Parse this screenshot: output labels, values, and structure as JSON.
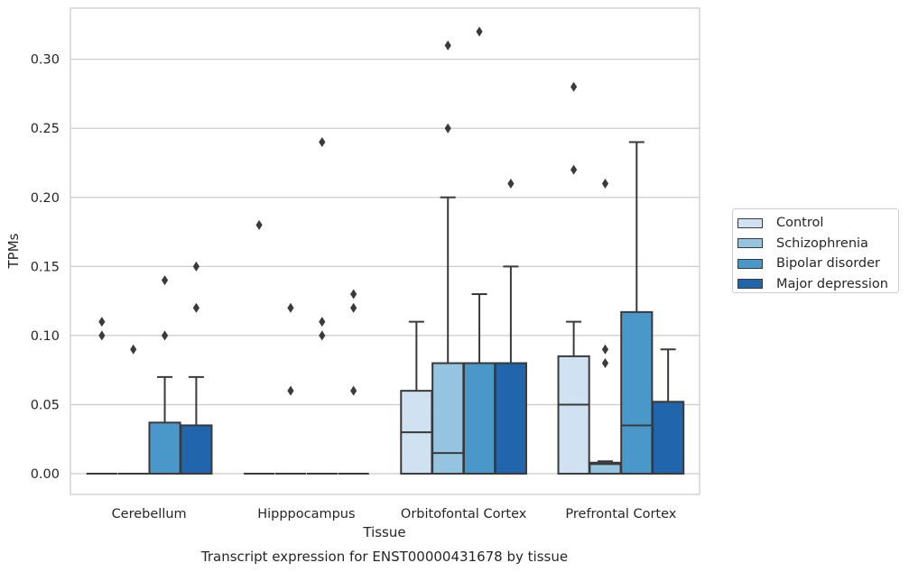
{
  "chart_data": {
    "type": "box",
    "caption": "Transcript expression for ENST00000431678 by tissue",
    "xlabel": "Tissue",
    "ylabel": "TPMs",
    "ylim": [
      -0.015,
      0.337
    ],
    "yticks": [
      "0.00",
      "0.05",
      "0.10",
      "0.15",
      "0.20",
      "0.25",
      "0.30"
    ],
    "ytick_values": [
      0,
      0.05,
      0.1,
      0.15,
      0.2,
      0.25,
      0.3
    ],
    "grid": "horizontal",
    "legend_position": "right",
    "categories": [
      "Cerebellum",
      "Hipppocampus",
      "Orbitofontal Cortex",
      "Prefrontal Cortex"
    ],
    "series": [
      {
        "name": "Control",
        "color": "#d0e1f2",
        "boxes": [
          {
            "min": 0,
            "q1": 0,
            "median": 0,
            "q3": 0,
            "max": 0,
            "outliers": [
              0.1,
              0.11
            ]
          },
          {
            "min": 0,
            "q1": 0,
            "median": 0,
            "q3": 0,
            "max": 0,
            "outliers": [
              0.18
            ]
          },
          {
            "min": 0,
            "q1": 0,
            "median": 0.03,
            "q3": 0.06,
            "max": 0.11,
            "outliers": []
          },
          {
            "min": 0,
            "q1": 0,
            "median": 0.05,
            "q3": 0.085,
            "max": 0.11,
            "outliers": [
              0.22,
              0.28
            ]
          }
        ]
      },
      {
        "name": "Schizophrenia",
        "color": "#94c4df",
        "boxes": [
          {
            "min": 0,
            "q1": 0,
            "median": 0,
            "q3": 0,
            "max": 0,
            "outliers": [
              0.09
            ]
          },
          {
            "min": 0,
            "q1": 0,
            "median": 0,
            "q3": 0,
            "max": 0,
            "outliers": [
              0.06,
              0.12
            ]
          },
          {
            "min": 0,
            "q1": 0,
            "median": 0.015,
            "q3": 0.08,
            "max": 0.2,
            "outliers": [
              0.25,
              0.31
            ]
          },
          {
            "min": 0,
            "q1": 0,
            "median": 0.007,
            "q3": 0.008,
            "max": 0.009,
            "outliers": [
              0.08,
              0.09,
              0.21
            ]
          }
        ]
      },
      {
        "name": "Bipolar disorder",
        "color": "#4a98c9",
        "boxes": [
          {
            "min": 0,
            "q1": 0,
            "median": 0,
            "q3": 0.037,
            "max": 0.07,
            "outliers": [
              0.1,
              0.14
            ]
          },
          {
            "min": 0,
            "q1": 0,
            "median": 0,
            "q3": 0,
            "max": 0,
            "outliers": [
              0.1,
              0.11,
              0.24
            ]
          },
          {
            "min": 0,
            "q1": 0,
            "median": 0.08,
            "q3": 0.08,
            "max": 0.13,
            "outliers": [
              0.32
            ]
          },
          {
            "min": 0,
            "q1": 0,
            "median": 0.035,
            "q3": 0.117,
            "max": 0.24,
            "outliers": []
          }
        ]
      },
      {
        "name": "Major depression",
        "color": "#2166ac",
        "boxes": [
          {
            "min": 0,
            "q1": 0,
            "median": 0,
            "q3": 0.035,
            "max": 0.07,
            "outliers": [
              0.12,
              0.15
            ]
          },
          {
            "min": 0,
            "q1": 0,
            "median": 0,
            "q3": 0,
            "max": 0,
            "outliers": [
              0.06,
              0.12,
              0.13
            ]
          },
          {
            "min": 0,
            "q1": 0,
            "median": 0.08,
            "q3": 0.08,
            "max": 0.15,
            "outliers": [
              0.21
            ]
          },
          {
            "min": 0,
            "q1": 0,
            "median": 0.052,
            "q3": 0.052,
            "max": 0.09,
            "outliers": []
          }
        ]
      }
    ]
  }
}
